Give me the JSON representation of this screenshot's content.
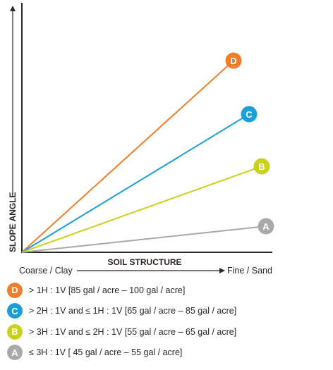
{
  "chart_data": {
    "type": "line",
    "xlabel": "SOIL STRUCTURE",
    "ylabel": "SLOPE ANGLE",
    "x_start_label": "Coarse / Clay",
    "x_end_label": "Fine / Sand",
    "grid": false,
    "series": [
      {
        "name": "D",
        "color": "#f07d28",
        "label_color": "#f07d28"
      },
      {
        "name": "C",
        "color": "#1a9fd8",
        "label_color": "#1a9fd8"
      },
      {
        "name": "B",
        "color": "#c9d11c",
        "label_color": "#c9d11c"
      },
      {
        "name": "A",
        "color": "#a9a9a9",
        "label_color": "#a9a9a9"
      }
    ]
  },
  "legend": [
    {
      "badge": "D",
      "color": "#f07d28",
      "text": "> 1H : 1V [85 gal / acre – 100 gal / acre]"
    },
    {
      "badge": "C",
      "color": "#1a9fd8",
      "text": "> 2H : 1V and ≤ 1H : 1V [65 gal / acre – 85 gal / acre]"
    },
    {
      "badge": "B",
      "color": "#c9d11c",
      "text": "> 3H : 1V and ≤ 2H : 1V [55 gal / acre – 65 gal / acre]"
    },
    {
      "badge": "A",
      "color": "#a9a9a9",
      "text": "≤ 3H : 1V [ 45 gal / acre – 55 gal / acre]"
    }
  ],
  "colors": {
    "axis": "#2b2623",
    "text": "#2b2623"
  }
}
